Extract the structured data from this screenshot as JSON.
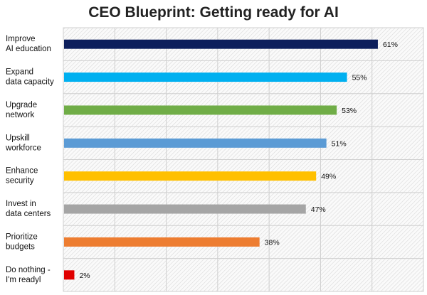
{
  "chart_data": {
    "type": "bar",
    "orientation": "horizontal",
    "title": "CEO Blueprint: Getting ready for AI",
    "categories": [
      [
        "Improve",
        "AI education"
      ],
      [
        "Expand",
        "data capacity"
      ],
      [
        "Upgrade",
        "network"
      ],
      [
        "Upskill",
        "workforce"
      ],
      [
        "Enhance",
        "security"
      ],
      [
        "Invest in",
        "data centers"
      ],
      [
        "Prioritize",
        "budgets"
      ],
      [
        "Do nothing -",
        "I'm readyl"
      ]
    ],
    "values": [
      61,
      55,
      53,
      51,
      49,
      47,
      38,
      2
    ],
    "value_labels": [
      "61%",
      "55%",
      "53%",
      "51%",
      "49%",
      "47%",
      "38%",
      "2%"
    ],
    "colors": [
      "#0d1f5c",
      "#00b0f0",
      "#70ad47",
      "#5b9bd5",
      "#ffc000",
      "#a5a5a5",
      "#ed7d31",
      "#e00000"
    ],
    "xlim": [
      0,
      70
    ],
    "x_gridline_step": 10,
    "grid": true,
    "xlabel": "",
    "ylabel": ""
  }
}
